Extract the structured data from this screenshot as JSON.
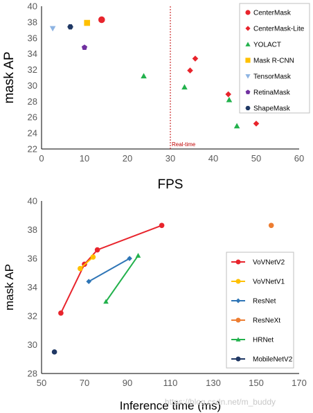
{
  "chart_data": [
    {
      "type": "scatter",
      "xlabel": "FPS",
      "ylabel": "mask AP",
      "xlim": [
        0,
        60
      ],
      "ylim": [
        22,
        40
      ],
      "x_ticks": [
        "0",
        "10",
        "20",
        "30",
        "40",
        "50",
        "60"
      ],
      "y_ticks": [
        "22",
        "24",
        "26",
        "28",
        "30",
        "32",
        "34",
        "36",
        "38",
        "40"
      ],
      "grid": false,
      "legend": "right",
      "reference_line": {
        "x": 30,
        "label": "Real-time",
        "color": "#c00000"
      },
      "series": [
        {
          "name": "CenterMask",
          "marker": "circle",
          "color": "#e8242c",
          "points": [
            [
              14,
              38.3
            ]
          ]
        },
        {
          "name": "CenterMask-Lite",
          "marker": "diamond",
          "color": "#e8242c",
          "points": [
            [
              35.8,
              33.4
            ],
            [
              34.6,
              31.9
            ],
            [
              43.5,
              28.9
            ],
            [
              50,
              25.2
            ]
          ]
        },
        {
          "name": "YOLACT",
          "marker": "triangle",
          "color": "#22b14c",
          "points": [
            [
              23.8,
              31.2
            ],
            [
              33.3,
              29.8
            ],
            [
              43.7,
              28.2
            ],
            [
              45.5,
              24.9
            ]
          ]
        },
        {
          "name": "Mask R-CNN",
          "marker": "square",
          "color": "#ffc000",
          "points": [
            [
              10.6,
              37.9
            ]
          ]
        },
        {
          "name": "TensorMask",
          "marker": "triangle-down",
          "color": "#8eb4e3",
          "points": [
            [
              2.6,
              37.2
            ]
          ]
        },
        {
          "name": "RetinaMask",
          "marker": "pentagon",
          "color": "#7030a0",
          "points": [
            [
              10,
              34.8
            ]
          ]
        },
        {
          "name": "ShapeMask",
          "marker": "hexagon",
          "color": "#1f3864",
          "points": [
            [
              6.7,
              37.4
            ]
          ]
        }
      ]
    },
    {
      "type": "line",
      "xlabel": "Inference time (ms)",
      "ylabel": "mask AP",
      "xlim": [
        50,
        170
      ],
      "ylim": [
        28,
        40
      ],
      "x_ticks": [
        "50",
        "70",
        "90",
        "110",
        "130",
        "150",
        "170"
      ],
      "y_ticks": [
        "28",
        "30",
        "32",
        "34",
        "36",
        "38",
        "40"
      ],
      "grid": false,
      "legend": "right",
      "series": [
        {
          "name": "VoVNetV2",
          "marker": "circle",
          "color": "#e8242c",
          "points": [
            [
              59,
              32.2
            ],
            [
              70,
              35.6
            ],
            [
              76,
              36.6
            ],
            [
              106,
              38.3
            ]
          ]
        },
        {
          "name": "VoVNetV1",
          "marker": "circle",
          "color": "#ffc000",
          "points": [
            [
              68,
              35.3
            ],
            [
              74,
              36.1
            ]
          ]
        },
        {
          "name": "ResNet",
          "marker": "diamond",
          "color": "#2e75b6",
          "points": [
            [
              72,
              34.4
            ],
            [
              91,
              36
            ]
          ]
        },
        {
          "name": "ResNeXt",
          "marker": "circle",
          "color": "#ed7d31",
          "points": [
            [
              157,
              38.3
            ]
          ]
        },
        {
          "name": "HRNet",
          "marker": "triangle",
          "color": "#22b14c",
          "points": [
            [
              80,
              33
            ],
            [
              95,
              36.2
            ]
          ]
        },
        {
          "name": "MobileNetV2",
          "marker": "circle",
          "color": "#203864",
          "points": [
            [
              56,
              29.5
            ]
          ]
        }
      ]
    }
  ],
  "watermark": "https://blog.csdn.net/m_buddy"
}
